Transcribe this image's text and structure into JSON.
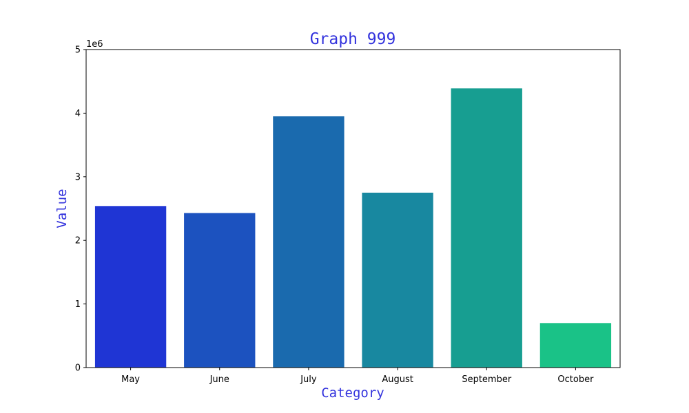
{
  "chart_data": {
    "type": "bar",
    "title": "Graph 999",
    "xlabel": "Category",
    "ylabel": "Value",
    "y_multiplier_label": "1e6",
    "categories": [
      "May",
      "June",
      "July",
      "August",
      "September",
      "October"
    ],
    "values": [
      2540000,
      2430000,
      3950000,
      2750000,
      4390000,
      700000
    ],
    "bar_colors": [
      "#1f35d4",
      "#1c52bf",
      "#1a6aae",
      "#1888a0",
      "#179e91",
      "#1ac287"
    ],
    "ylim": [
      0,
      5000000
    ],
    "yticks": [
      0,
      1000000,
      2000000,
      3000000,
      4000000,
      5000000
    ],
    "ytick_labels": [
      "0",
      "1",
      "2",
      "3",
      "4",
      "5"
    ],
    "grid": false,
    "legend": "none",
    "label_color": "#3333dd"
  }
}
